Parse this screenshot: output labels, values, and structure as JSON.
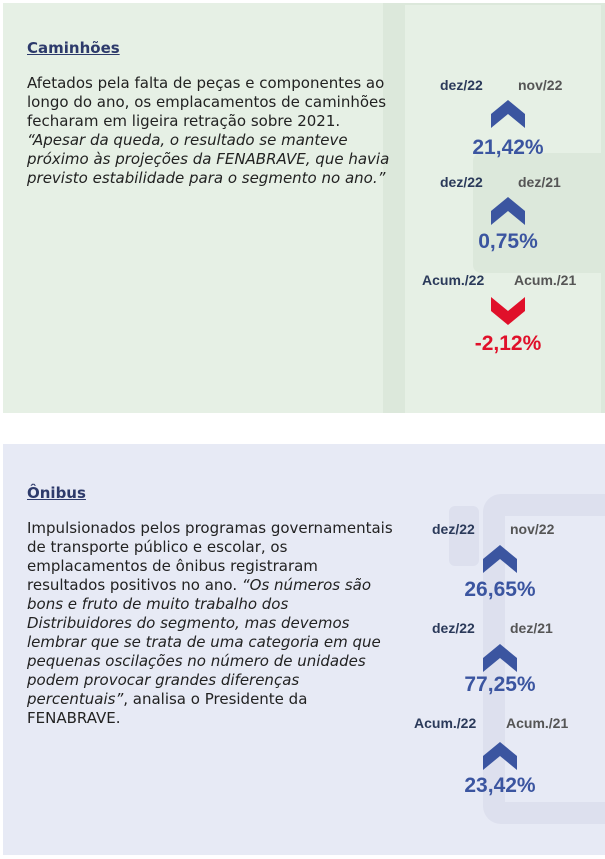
{
  "colors": {
    "up": "#3b55a0",
    "down": "#e0102a",
    "green_bg": "#e6f0e5",
    "blue_bg": "#e7eaf5"
  },
  "caminhoes": {
    "title": "Caminhões",
    "text_normal": "Afetados pela falta de peças e componentes ao longo do ano, os emplacamentos de caminhões fecharam em ligeira retração sobre 2021. ",
    "text_italic": "“Apesar da queda, o resultado se manteve próximo às projeções da FENABRAVE, que havia previsto estabilidade para o segmento no ano.”",
    "stats": [
      {
        "a": "dez/22",
        "b": "nov/22",
        "value": "21,42%",
        "direction": "up"
      },
      {
        "a": "dez/22",
        "b": "dez/21",
        "value": "0,75%",
        "direction": "up"
      },
      {
        "a": "Acum./22",
        "b": "Acum./21",
        "value": "-2,12%",
        "direction": "down"
      }
    ]
  },
  "onibus": {
    "title": "Ônibus",
    "text_normal": "Impulsionados pelos programas governamentais de transporte público e escolar, os emplacamentos de ônibus registraram resultados positivos no ano. ",
    "text_italic": "“Os números são bons e fruto de muito trabalho dos Distribuidores do segmento, mas devemos lembrar que se trata de uma categoria em que pequenas oscilações no número de unidades podem provocar grandes diferenças percentuais”",
    "text_end": ", analisa o Presidente da FENABRAVE.",
    "stats": [
      {
        "a": "dez/22",
        "b": "nov/22",
        "value": "26,65%",
        "direction": "up"
      },
      {
        "a": "dez/22",
        "b": "dez/21",
        "value": "77,25%",
        "direction": "up"
      },
      {
        "a": "Acum./22",
        "b": "Acum./21",
        "value": "23,42%",
        "direction": "up"
      }
    ]
  }
}
